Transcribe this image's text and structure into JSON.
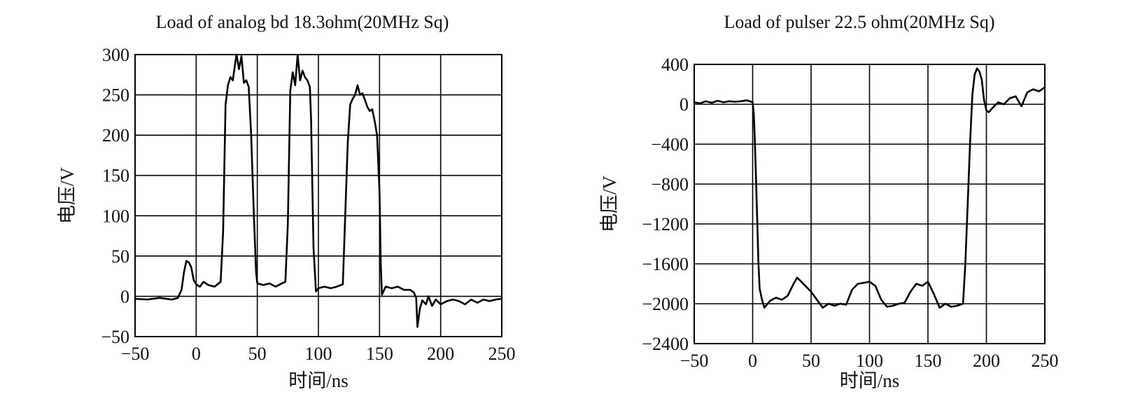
{
  "chart_data": [
    {
      "type": "line",
      "title": "Load of analog bd 18.3ohm(20MHz Sq)",
      "xlabel": "时间/ns",
      "ylabel": "电压/V",
      "xlim": [
        -50,
        250
      ],
      "ylim": [
        -50,
        300
      ],
      "xticks": [
        "−50",
        "0",
        "50",
        "100",
        "150",
        "200",
        "250"
      ],
      "yticks": [
        "300",
        "250",
        "200",
        "150",
        "100",
        "50",
        "0",
        "−50"
      ],
      "grid": true,
      "series": [
        {
          "x": [
            -50,
            -40,
            -30,
            -20,
            -15,
            -12,
            -10,
            -8,
            -6,
            -4,
            -2,
            0,
            3,
            6,
            10,
            15,
            20,
            22,
            24,
            26,
            28,
            30,
            32,
            33,
            35,
            37,
            39,
            41,
            43,
            45,
            47,
            49,
            50,
            55,
            60,
            65,
            70,
            73,
            75,
            77,
            79,
            81,
            83,
            85,
            87,
            89,
            91,
            93,
            94,
            96,
            98,
            100,
            105,
            110,
            115,
            120,
            124,
            126,
            128,
            130,
            132,
            134,
            136,
            138,
            140,
            142,
            144,
            146,
            148,
            150,
            151,
            152,
            155,
            160,
            165,
            170,
            175,
            178,
            180,
            181,
            183,
            185,
            188,
            190,
            193,
            196,
            200,
            205,
            210,
            215,
            220,
            225,
            230,
            235,
            240,
            245,
            250
          ],
          "y": [
            -3,
            -4,
            -2,
            -4,
            -2,
            8,
            30,
            44,
            42,
            36,
            20,
            15,
            12,
            18,
            14,
            12,
            18,
            80,
            238,
            262,
            272,
            268,
            290,
            300,
            282,
            298,
            265,
            268,
            260,
            200,
            110,
            30,
            16,
            14,
            16,
            12,
            16,
            18,
            90,
            255,
            278,
            262,
            300,
            268,
            280,
            272,
            268,
            260,
            220,
            60,
            6,
            10,
            12,
            10,
            12,
            15,
            190,
            238,
            245,
            250,
            262,
            250,
            252,
            244,
            235,
            230,
            232,
            218,
            200,
            130,
            40,
            2,
            12,
            10,
            12,
            8,
            8,
            5,
            -2,
            -38,
            -15,
            -5,
            -10,
            0,
            -12,
            -4,
            -10,
            -6,
            -4,
            -6,
            -10,
            -4,
            -8,
            -4,
            -6,
            -4,
            -3
          ]
        }
      ]
    },
    {
      "type": "line",
      "title": "Load of pulser 22.5 ohm(20MHz Sq)",
      "xlabel": "时间/ns",
      "ylabel": "电压/V",
      "xlim": [
        -50,
        250
      ],
      "ylim": [
        -2400,
        400
      ],
      "xticks": [
        "−50",
        "0",
        "50",
        "100",
        "150",
        "200",
        "250"
      ],
      "yticks": [
        "400",
        "0",
        "−400",
        "−800",
        "−1200",
        "−1600",
        "−2000",
        "−2400"
      ],
      "grid": true,
      "series": [
        {
          "x": [
            -50,
            -45,
            -40,
            -35,
            -30,
            -25,
            -20,
            -15,
            -10,
            -5,
            0,
            1,
            2,
            3,
            4,
            5,
            6,
            8,
            10,
            15,
            20,
            25,
            30,
            35,
            38,
            40,
            45,
            50,
            55,
            60,
            65,
            70,
            75,
            80,
            85,
            90,
            95,
            100,
            105,
            110,
            115,
            120,
            125,
            130,
            135,
            140,
            145,
            150,
            155,
            160,
            165,
            170,
            175,
            180,
            182,
            184,
            186,
            188,
            190,
            192,
            194,
            196,
            198,
            200,
            202,
            205,
            210,
            215,
            220,
            225,
            230,
            235,
            240,
            245,
            250
          ],
          "y": [
            20,
            10,
            30,
            15,
            35,
            20,
            30,
            25,
            30,
            40,
            20,
            -100,
            -400,
            -800,
            -1200,
            -1600,
            -1850,
            -1960,
            -2040,
            -1970,
            -1940,
            -1960,
            -1920,
            -1800,
            -1740,
            -1760,
            -1820,
            -1880,
            -1960,
            -2040,
            -2000,
            -2020,
            -2000,
            -2010,
            -1860,
            -1800,
            -1790,
            -1780,
            -1820,
            -1960,
            -2030,
            -2020,
            -2000,
            -1990,
            -1880,
            -1800,
            -1820,
            -1780,
            -1900,
            -2040,
            -2000,
            -2030,
            -2020,
            -2000,
            -1600,
            -1000,
            -400,
            100,
            300,
            360,
            330,
            250,
            40,
            -60,
            -80,
            -40,
            20,
            0,
            60,
            80,
            -20,
            120,
            150,
            130,
            170
          ]
        }
      ]
    }
  ]
}
